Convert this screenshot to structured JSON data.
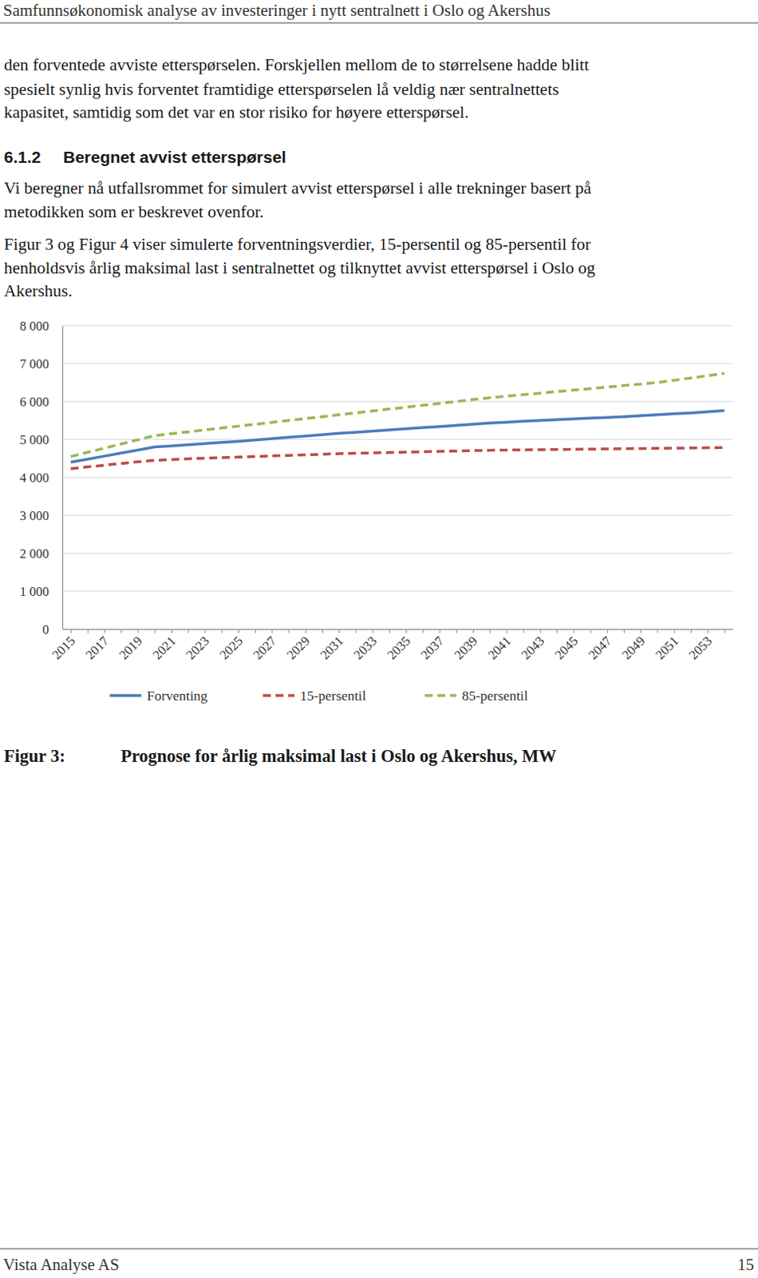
{
  "header": {
    "title": "Samfunnsøkonomisk analyse av investeringer i nytt sentralnett i Oslo og Akershus"
  },
  "paragraphs": [
    {
      "lines": [
        "den forventede avviste etterspørselen. Forskjellen mellom de to størrelsene hadde blitt",
        "spesielt synlig hvis forventet framtidige etterspørselen lå veldig nær sentralnettets",
        "kapasitet, samtidig som det var en stor risiko for høyere etterspørsel."
      ]
    },
    {
      "lines": [
        "Vi beregner nå utfallsrommet for simulert avvist etterspørsel i alle trekninger basert på",
        "metodikken som er beskrevet ovenfor."
      ]
    },
    {
      "lines": [
        "Figur 3 og Figur 4 viser simulerte forventningsverdier, 15-persentil og 85-persentil for",
        "henholdsvis årlig maksimal last i sentralnettet og tilknyttet avvist etterspørsel i Oslo og",
        "Akershus."
      ]
    }
  ],
  "section": {
    "number": "6.1.2",
    "title": "Beregnet avvist etterspørsel"
  },
  "chart_data": {
    "type": "line",
    "categories": [
      "2015",
      null,
      "2017",
      null,
      "2019",
      null,
      "2021",
      null,
      "2023",
      null,
      "2025",
      null,
      "2027",
      null,
      "2029",
      null,
      "2031",
      null,
      "2033",
      null,
      "2035",
      null,
      "2037",
      null,
      "2039",
      null,
      "2041",
      null,
      "2043",
      null,
      "2045",
      null,
      "2047",
      null,
      "2049",
      null,
      "2051",
      null,
      "2053",
      null
    ],
    "series": [
      {
        "name": "Forventing",
        "color": "#4a7ebb",
        "line_style": "solid",
        "values": [
          4400,
          4480,
          4560,
          4640,
          4720,
          4800,
          4830,
          4860,
          4890,
          4920,
          4950,
          4985,
          5020,
          5055,
          5090,
          5125,
          5160,
          5190,
          5220,
          5250,
          5280,
          5310,
          5340,
          5370,
          5400,
          5430,
          5455,
          5480,
          5500,
          5520,
          5540,
          5560,
          5580,
          5600,
          5625,
          5650,
          5675,
          5700,
          5730,
          5760
        ]
      },
      {
        "name": "15-persentil",
        "color": "#be4b48",
        "line_style": "dashed",
        "values": [
          4230,
          4275,
          4320,
          4365,
          4410,
          4450,
          4470,
          4490,
          4505,
          4520,
          4535,
          4550,
          4565,
          4580,
          4595,
          4610,
          4625,
          4635,
          4645,
          4655,
          4665,
          4675,
          4685,
          4695,
          4705,
          4715,
          4720,
          4725,
          4730,
          4735,
          4740,
          4745,
          4750,
          4755,
          4760,
          4765,
          4770,
          4775,
          4780,
          4785
        ]
      },
      {
        "name": "85-persentil",
        "color": "#98b954",
        "line_style": "dashed",
        "values": [
          4550,
          4660,
          4770,
          4880,
          4990,
          5100,
          5150,
          5200,
          5250,
          5300,
          5350,
          5400,
          5450,
          5500,
          5550,
          5600,
          5650,
          5700,
          5750,
          5800,
          5850,
          5900,
          5950,
          6000,
          6050,
          6100,
          6140,
          6180,
          6220,
          6260,
          6300,
          6340,
          6380,
          6420,
          6460,
          6500,
          6560,
          6620,
          6680,
          6740
        ]
      }
    ],
    "ylim": [
      0,
      8000
    ],
    "yticks": [
      0,
      {
        "value": 1000,
        "label": "1 000"
      },
      {
        "value": 2000,
        "label": "2 000"
      },
      {
        "value": 3000,
        "label": "3 000"
      },
      {
        "value": 4000,
        "label": "4 000"
      },
      {
        "value": 5000,
        "label": "5 000"
      },
      {
        "value": 6000,
        "label": "6 000"
      },
      {
        "value": 7000,
        "label": "7 000"
      },
      {
        "value": 8000,
        "label": "8 000"
      }
    ],
    "grid": true,
    "legend": "bottom"
  },
  "caption": {
    "label": "Figur 3:",
    "text": "Prognose for årlig maksimal last i Oslo og Akershus, MW"
  },
  "footer": {
    "left": "Vista Analyse AS",
    "page": 15
  }
}
